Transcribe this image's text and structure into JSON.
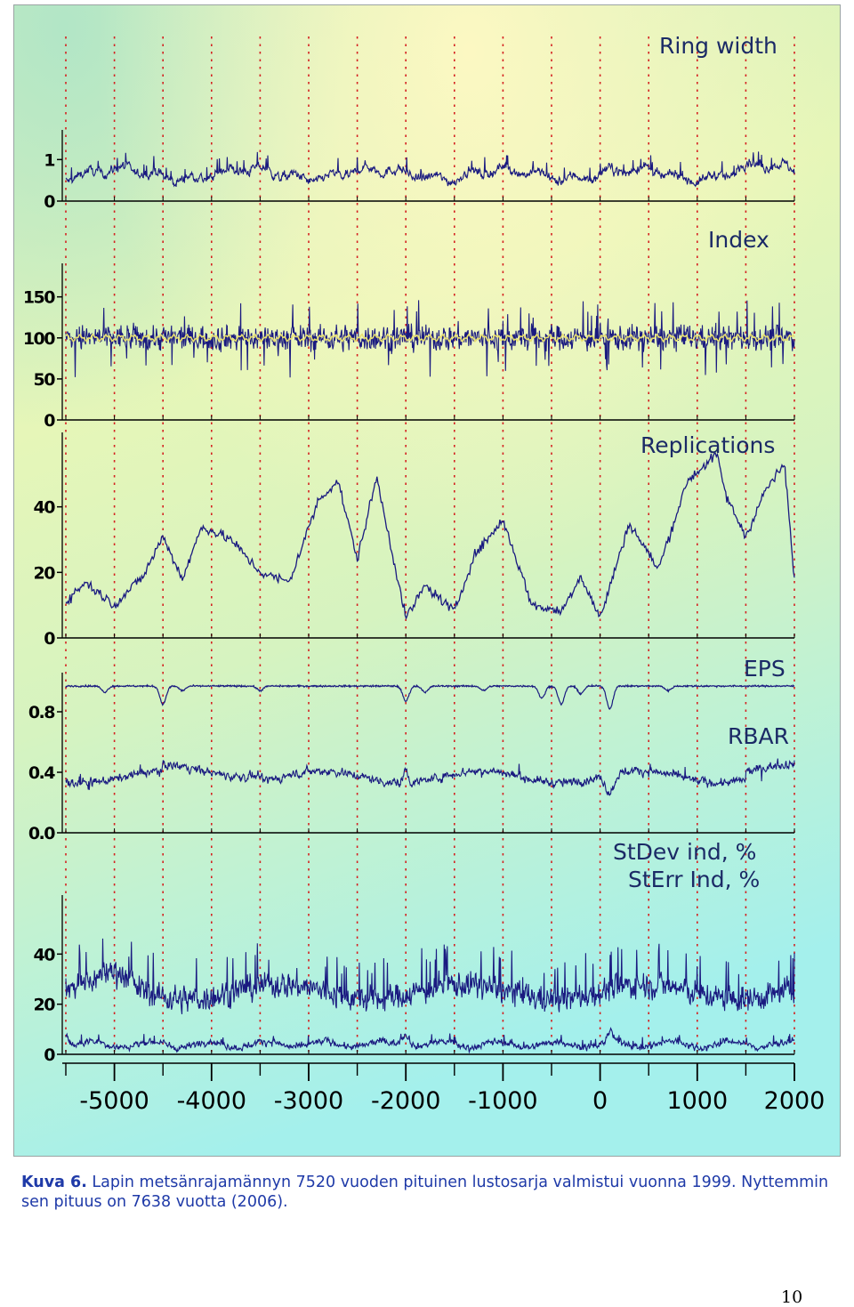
{
  "figure": {
    "colors": {
      "series": "#1a1a80",
      "mean_line": "#e8e070",
      "grid_dotted": "#d42020",
      "axis": "#000000",
      "bg_top_left": "#b8ecc8",
      "bg_top_mid": "#fcf8c4",
      "bg_mid": "#dff4b8",
      "bg_bottom": "#a6f2ee"
    },
    "x_axis": {
      "ticks": [
        "-5000",
        "-4000",
        "-3000",
        "-2000",
        "-1000",
        "0",
        "1000",
        "2000"
      ],
      "range": [
        -5500,
        2000
      ],
      "gridlines": "dotted red vertical at every 500 years"
    }
  },
  "chart_data": [
    {
      "type": "line",
      "title": "Ring width",
      "yticks": [
        "0",
        "1"
      ],
      "ylim": [
        0,
        1.5
      ],
      "series": [
        {
          "values_description_visible": null
        }
      ],
      "approx_mean": 0.65
    },
    {
      "type": "line",
      "title": "Index",
      "yticks": [
        "0",
        "50",
        "100",
        "150"
      ],
      "ylim": [
        0,
        180
      ],
      "approx_mean": 100
    },
    {
      "type": "line",
      "title": "Replications",
      "yticks": [
        "0",
        "20",
        "40"
      ],
      "ylim": [
        0,
        60
      ],
      "x": [
        -5500,
        -5300,
        -5000,
        -4700,
        -4500,
        -4300,
        -4100,
        -3800,
        -3500,
        -3200,
        -2900,
        -2700,
        -2500,
        -2300,
        -2000,
        -1800,
        -1500,
        -1300,
        -1000,
        -700,
        -400,
        -200,
        0,
        300,
        600,
        900,
        1200,
        1300,
        1500,
        1700,
        1900,
        2000
      ],
      "values": [
        11,
        17,
        10,
        19,
        31,
        18,
        34,
        30,
        20,
        17,
        42,
        48,
        24,
        49,
        6,
        16,
        8,
        25,
        36,
        10,
        8,
        19,
        6,
        35,
        21,
        48,
        56,
        43,
        31,
        45,
        53,
        17
      ]
    },
    {
      "type": "line",
      "title": "EPS",
      "yticks": [
        "0.0",
        "0.4",
        "0.8"
      ],
      "ylim": [
        0,
        1.0
      ],
      "approx_mean": 0.97
    },
    {
      "type": "line",
      "title": "RBAR",
      "ylim": [
        0,
        1.0
      ],
      "approx_mean": 0.37
    },
    {
      "type": "line",
      "title": "StDev ind, %",
      "yticks": [
        "0",
        "20",
        "40"
      ],
      "ylim": [
        0,
        60
      ],
      "approx_mean": 25
    },
    {
      "type": "line",
      "title": "StErr Ind, %",
      "ylim": [
        0,
        60
      ],
      "approx_mean": 4
    }
  ],
  "caption": {
    "label": "Kuva 6.",
    "text": " Lapin metsänrajamännyn 7520 vuoden pituinen lustosarja valmistui vuonna 1999. Nyttemmin sen pituus on 7638 vuotta (2006)."
  },
  "page_number": "10"
}
